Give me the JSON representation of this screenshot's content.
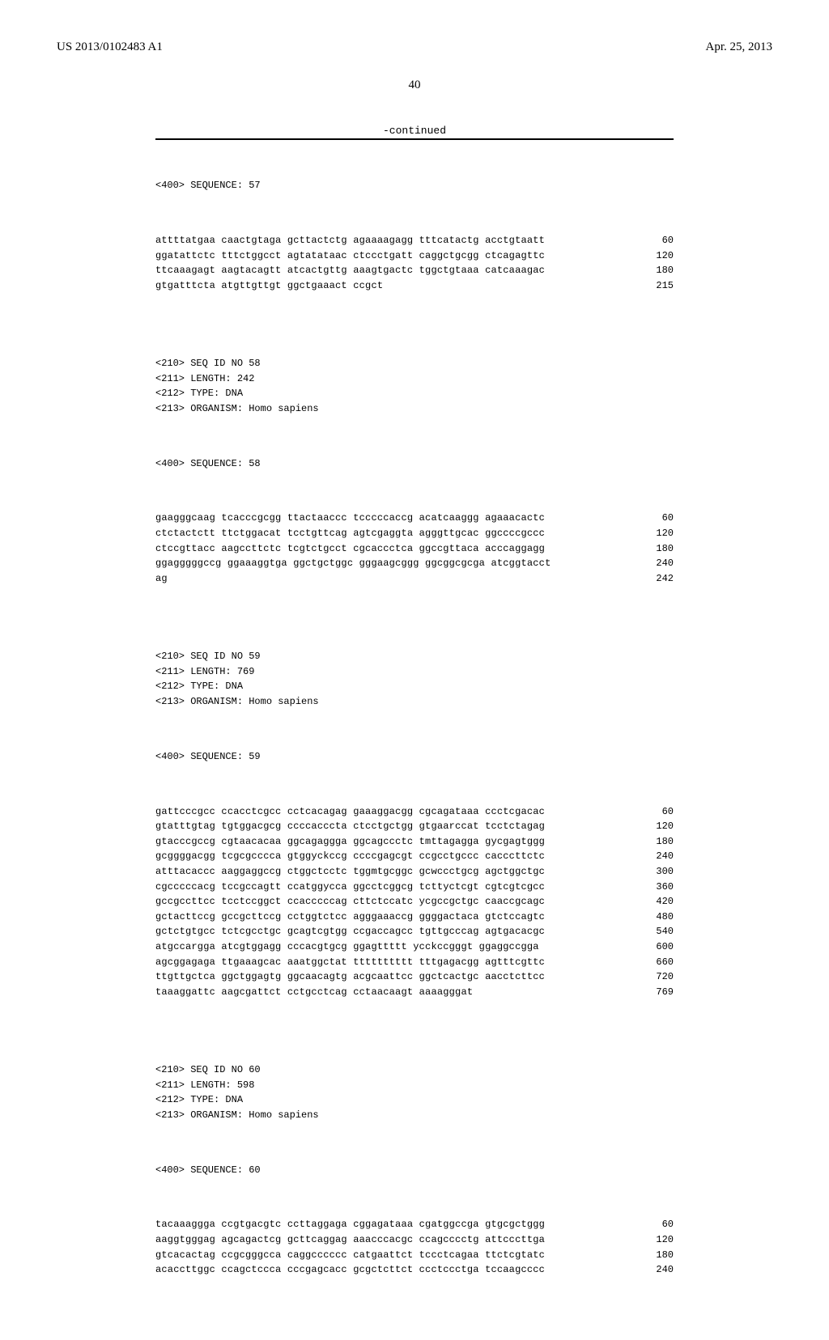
{
  "header": {
    "pub_number": "US 2013/0102483 A1",
    "pub_date": "Apr. 25, 2013",
    "page_number": "40",
    "continued_label": "-continued"
  },
  "seq57": {
    "label": "<400> SEQUENCE: 57",
    "lines": [
      {
        "t": "attttatgaa caactgtaga gcttactctg agaaaagagg tttcatactg acctgtaatt",
        "n": "60"
      },
      {
        "t": "ggatattctc tttctggcct agtatataac ctccctgatt caggctgcgg ctcagagttc",
        "n": "120"
      },
      {
        "t": "ttcaaagagt aagtacagtt atcactgttg aaagtgactc tggctgtaaa catcaaagac",
        "n": "180"
      },
      {
        "t": "gtgatttcta atgttgttgt ggctgaaact ccgct",
        "n": "215"
      }
    ]
  },
  "seq58": {
    "meta": [
      "<210> SEQ ID NO 58",
      "<211> LENGTH: 242",
      "<212> TYPE: DNA",
      "<213> ORGANISM: Homo sapiens"
    ],
    "label": "<400> SEQUENCE: 58",
    "lines": [
      {
        "t": "gaagggcaag tcacccgcgg ttactaaccc tcccccaccg acatcaaggg agaaacactc",
        "n": "60"
      },
      {
        "t": "ctctactctt ttctggacat tcctgttcag agtcgaggta agggttgcac ggccccgccc",
        "n": "120"
      },
      {
        "t": "ctccgttacc aagccttctc tcgtctgcct cgcaccctca ggccgttaca acccaggagg",
        "n": "180"
      },
      {
        "t": "ggagggggccg ggaaaggtga ggctgctggc gggaagcggg ggcggcgcga atcggtacct",
        "n": "240"
      },
      {
        "t": "ag",
        "n": "242"
      }
    ]
  },
  "seq59": {
    "meta": [
      "<210> SEQ ID NO 59",
      "<211> LENGTH: 769",
      "<212> TYPE: DNA",
      "<213> ORGANISM: Homo sapiens"
    ],
    "label": "<400> SEQUENCE: 59",
    "lines": [
      {
        "t": "gattcccgcc ccacctcgcc cctcacagag gaaaggacgg cgcagataaa ccctcgacac",
        "n": "60"
      },
      {
        "t": "gtatttgtag tgtggacgcg ccccacccta ctcctgctgg gtgaarccat tcctctagag",
        "n": "120"
      },
      {
        "t": "gtacccgccg cgtaacacaa ggcagaggga ggcagccctc tmttagagga gycgagtggg",
        "n": "180"
      },
      {
        "t": "gcggggacgg tcgcgcccca gtggyckccg ccccgagcgt ccgcctgccc cacccttctc",
        "n": "240"
      },
      {
        "t": "atttacaccc aaggaggccg ctggctcctc tggmtgcggc gcwccctgcg agctggctgc",
        "n": "300"
      },
      {
        "t": "cgcccccacg tccgccagtt ccatggycca ggcctcggcg tcttyctcgt cgtcgtcgcc",
        "n": "360"
      },
      {
        "t": "gccgccttcc tcctccggct ccacccccag cttctccatc ycgccgctgc caaccgcagc",
        "n": "420"
      },
      {
        "t": "gctacttccg gccgcttccg cctggtctcc agggaaaccg ggggactaca gtctccagtc",
        "n": "480"
      },
      {
        "t": "gctctgtgcc tctcgcctgc gcagtcgtgg ccgaccagcc tgttgcccag agtgacacgc",
        "n": "540"
      },
      {
        "t": "atgccargga atcgtggagg cccacgtgcg ggagttttt ycckccgggt ggaggccgga",
        "n": "600"
      },
      {
        "t": "agcggagaga ttgaaagcac aaatggctat tttttttttt tttgagacgg agtttcgttc",
        "n": "660"
      },
      {
        "t": "ttgttgctca ggctggagtg ggcaacagtg acgcaattcc ggctcactgc aacctcttcc",
        "n": "720"
      },
      {
        "t": "taaaggattc aagcgattct cctgcctcag cctaacaagt aaaagggat",
        "n": "769"
      }
    ]
  },
  "seq60": {
    "meta": [
      "<210> SEQ ID NO 60",
      "<211> LENGTH: 598",
      "<212> TYPE: DNA",
      "<213> ORGANISM: Homo sapiens"
    ],
    "label": "<400> SEQUENCE: 60",
    "lines": [
      {
        "t": "tacaaaggga ccgtgacgtc ccttaggaga cggagataaa cgatggccga gtgcgctggg",
        "n": "60"
      },
      {
        "t": "aaggtgggag agcagactcg gcttcaggag aaacccacgc ccagcccctg attcccttga",
        "n": "120"
      },
      {
        "t": "gtcacactag ccgcgggcca caggcccccc catgaattct tccctcagaa ttctcgtatc",
        "n": "180"
      },
      {
        "t": "acaccttggc ccagctccca cccgagcacc gcgctcttct ccctccctga tccaagcccc",
        "n": "240"
      }
    ]
  }
}
